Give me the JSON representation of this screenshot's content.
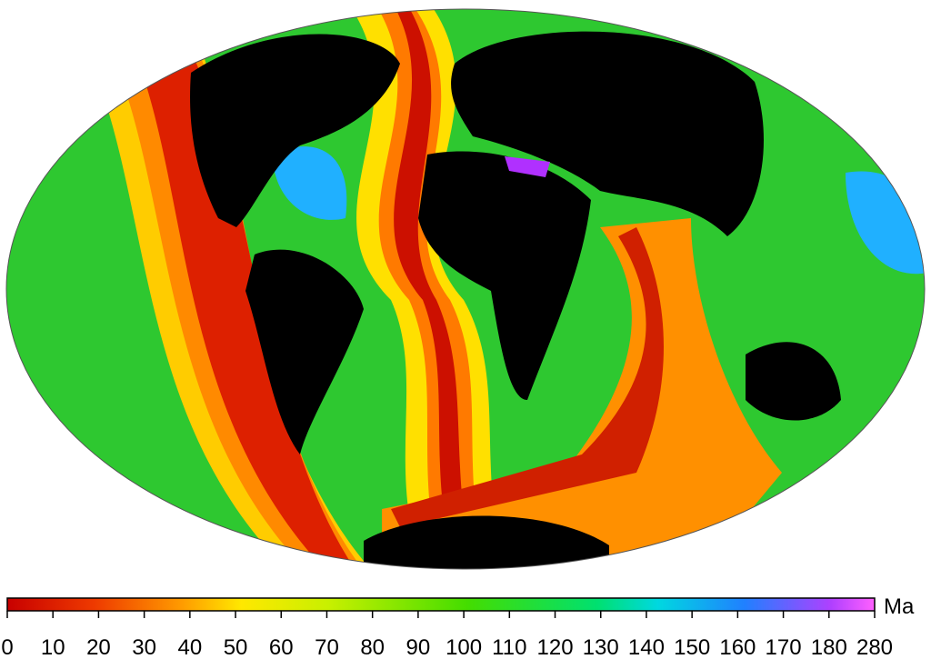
{
  "colorbar": {
    "unit": "Ma",
    "ticks": [
      0,
      10,
      20,
      30,
      40,
      50,
      60,
      70,
      80,
      90,
      100,
      110,
      120,
      130,
      140,
      150,
      160,
      170,
      180,
      280
    ]
  }
}
